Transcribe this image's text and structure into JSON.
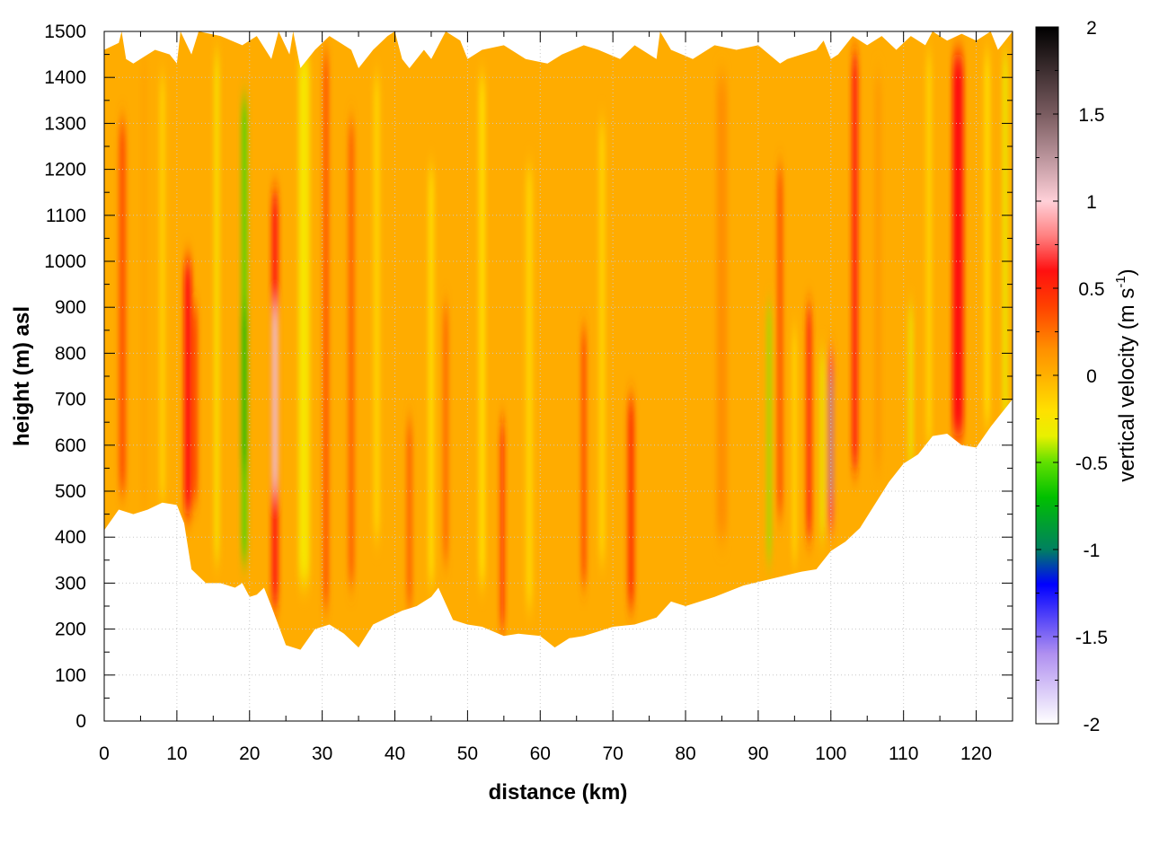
{
  "chart_data": {
    "type": "heatmap",
    "title": "",
    "xlabel": "distance (km)",
    "ylabel": "height (m) asl",
    "xlim": [
      0,
      125
    ],
    "ylim": [
      0,
      1500
    ],
    "x_ticks": [
      0,
      10,
      20,
      30,
      40,
      50,
      60,
      70,
      80,
      90,
      100,
      110,
      120
    ],
    "y_ticks": [
      0,
      100,
      200,
      300,
      400,
      500,
      600,
      700,
      800,
      900,
      1000,
      1100,
      1200,
      1300,
      1400,
      1500
    ],
    "grid": true,
    "colorbar": {
      "label_main": "vertical velocity (m s",
      "label_sup": "-1",
      "label_close": ")",
      "range": [
        -2,
        2
      ],
      "ticks": [
        "2",
        "1.5",
        "1",
        "0.5",
        "0",
        "-0.5",
        "-1",
        "-1.5",
        "-2"
      ],
      "tick_values": [
        2,
        1.5,
        1,
        0.5,
        0,
        -0.5,
        -1,
        -1.5,
        -2
      ],
      "stops": [
        {
          "value": 2,
          "color": "#000000"
        },
        {
          "value": 1.5,
          "color": "#7a5c60"
        },
        {
          "value": 1.2,
          "color": "#c8a0a8"
        },
        {
          "value": 1.0,
          "color": "#ffd0d8"
        },
        {
          "value": 0.8,
          "color": "#ff8080"
        },
        {
          "value": 0.6,
          "color": "#ff1010"
        },
        {
          "value": 0.4,
          "color": "#ff4000"
        },
        {
          "value": 0.15,
          "color": "#ff9000"
        },
        {
          "value": 0.0,
          "color": "#ffb000"
        },
        {
          "value": -0.2,
          "color": "#ffe000"
        },
        {
          "value": -0.35,
          "color": "#e8f000"
        },
        {
          "value": -0.5,
          "color": "#60e000"
        },
        {
          "value": -0.7,
          "color": "#00c000"
        },
        {
          "value": -1.0,
          "color": "#008060"
        },
        {
          "value": -1.2,
          "color": "#0000ff"
        },
        {
          "value": -1.6,
          "color": "#b090f0"
        },
        {
          "value": -2.0,
          "color": "#ffffff"
        }
      ]
    },
    "domain_bottom": [
      [
        0,
        415
      ],
      [
        2,
        460
      ],
      [
        4,
        450
      ],
      [
        6,
        460
      ],
      [
        8,
        475
      ],
      [
        10,
        470
      ],
      [
        11,
        430
      ],
      [
        12,
        330
      ],
      [
        14,
        300
      ],
      [
        16,
        300
      ],
      [
        18,
        290
      ],
      [
        19,
        300
      ],
      [
        20,
        270
      ],
      [
        21,
        275
      ],
      [
        22,
        290
      ],
      [
        23,
        250
      ],
      [
        25,
        165
      ],
      [
        27,
        155
      ],
      [
        29,
        200
      ],
      [
        31,
        210
      ],
      [
        33,
        190
      ],
      [
        35,
        160
      ],
      [
        37,
        210
      ],
      [
        39,
        225
      ],
      [
        41,
        240
      ],
      [
        43,
        250
      ],
      [
        45,
        270
      ],
      [
        46,
        290
      ],
      [
        48,
        220
      ],
      [
        50,
        210
      ],
      [
        52,
        205
      ],
      [
        55,
        185
      ],
      [
        57,
        190
      ],
      [
        60,
        185
      ],
      [
        62,
        160
      ],
      [
        64,
        180
      ],
      [
        66,
        185
      ],
      [
        68,
        195
      ],
      [
        70,
        205
      ],
      [
        73,
        210
      ],
      [
        76,
        225
      ],
      [
        78,
        260
      ],
      [
        80,
        250
      ],
      [
        84,
        270
      ],
      [
        88,
        295
      ],
      [
        92,
        310
      ],
      [
        96,
        325
      ],
      [
        98,
        330
      ],
      [
        100,
        370
      ],
      [
        102,
        390
      ],
      [
        104,
        420
      ],
      [
        106,
        470
      ],
      [
        108,
        520
      ],
      [
        110,
        560
      ],
      [
        112,
        580
      ],
      [
        114,
        620
      ],
      [
        116,
        625
      ],
      [
        118,
        600
      ],
      [
        120,
        595
      ],
      [
        122,
        640
      ],
      [
        124,
        680
      ],
      [
        125,
        700
      ]
    ],
    "domain_top": [
      [
        0,
        1460
      ],
      [
        2,
        1475
      ],
      [
        2.4,
        1500
      ],
      [
        3,
        1440
      ],
      [
        4,
        1430
      ],
      [
        7,
        1460
      ],
      [
        9,
        1450
      ],
      [
        10,
        1430
      ],
      [
        10.5,
        1500
      ],
      [
        12,
        1450
      ],
      [
        13,
        1500
      ],
      [
        16,
        1490
      ],
      [
        19,
        1470
      ],
      [
        21,
        1490
      ],
      [
        23,
        1440
      ],
      [
        24,
        1500
      ],
      [
        25.5,
        1450
      ],
      [
        26,
        1500
      ],
      [
        27,
        1420
      ],
      [
        29,
        1460
      ],
      [
        31,
        1490
      ],
      [
        34,
        1460
      ],
      [
        35,
        1420
      ],
      [
        37,
        1460
      ],
      [
        39,
        1490
      ],
      [
        40,
        1500
      ],
      [
        41,
        1440
      ],
      [
        42,
        1420
      ],
      [
        44,
        1460
      ],
      [
        45,
        1440
      ],
      [
        47,
        1500
      ],
      [
        49,
        1480
      ],
      [
        50,
        1440
      ],
      [
        52,
        1460
      ],
      [
        55,
        1470
      ],
      [
        58,
        1440
      ],
      [
        61,
        1430
      ],
      [
        63,
        1450
      ],
      [
        66,
        1470
      ],
      [
        68,
        1460
      ],
      [
        71,
        1440
      ],
      [
        73,
        1470
      ],
      [
        76,
        1440
      ],
      [
        76.5,
        1500
      ],
      [
        78,
        1460
      ],
      [
        81,
        1440
      ],
      [
        84,
        1470
      ],
      [
        87,
        1460
      ],
      [
        90,
        1470
      ],
      [
        93,
        1430
      ],
      [
        94,
        1440
      ],
      [
        96,
        1450
      ],
      [
        98,
        1460
      ],
      [
        99,
        1480
      ],
      [
        100,
        1440
      ],
      [
        101,
        1450
      ],
      [
        103,
        1490
      ],
      [
        105,
        1470
      ],
      [
        107,
        1490
      ],
      [
        109,
        1460
      ],
      [
        111,
        1490
      ],
      [
        113,
        1470
      ],
      [
        114,
        1500
      ],
      [
        116,
        1480
      ],
      [
        118,
        1495
      ],
      [
        120,
        1480
      ],
      [
        122,
        1500
      ],
      [
        123,
        1460
      ],
      [
        125,
        1500
      ]
    ],
    "features": [
      {
        "x": 2.5,
        "y0": 500,
        "y1": 1300,
        "v": 0.35,
        "w": 0.9
      },
      {
        "x": 5.5,
        "y0": 450,
        "y1": 1450,
        "v": 0.05,
        "w": 0.9
      },
      {
        "x": 8.0,
        "y0": 480,
        "y1": 1400,
        "v": -0.15,
        "w": 0.7
      },
      {
        "x": 11.5,
        "y0": 450,
        "y1": 1000,
        "v": 0.6,
        "w": 1.0
      },
      {
        "x": 12.5,
        "y0": 480,
        "y1": 900,
        "v": 0.45,
        "w": 0.6
      },
      {
        "x": 15.5,
        "y0": 350,
        "y1": 1450,
        "v": -0.25,
        "w": 0.6
      },
      {
        "x": 19.3,
        "y0": 350,
        "y1": 1350,
        "v": -0.55,
        "w": 0.7
      },
      {
        "x": 19.3,
        "y0": 550,
        "y1": 900,
        "v": -0.7,
        "w": 0.6
      },
      {
        "x": 23.5,
        "y0": 250,
        "y1": 1150,
        "v": 0.55,
        "w": 0.9
      },
      {
        "x": 23.5,
        "y0": 500,
        "y1": 900,
        "v": 1.05,
        "w": 0.7
      },
      {
        "x": 27.5,
        "y0": 300,
        "y1": 1450,
        "v": -0.25,
        "w": 1.5
      },
      {
        "x": 30.5,
        "y0": 250,
        "y1": 1450,
        "v": 0.35,
        "w": 0.7
      },
      {
        "x": 34.0,
        "y0": 300,
        "y1": 1300,
        "v": 0.3,
        "w": 0.8
      },
      {
        "x": 37.5,
        "y0": 400,
        "y1": 1400,
        "v": -0.15,
        "w": 0.8
      },
      {
        "x": 42.0,
        "y0": 250,
        "y1": 650,
        "v": 0.3,
        "w": 0.7
      },
      {
        "x": 45.0,
        "y0": 300,
        "y1": 1200,
        "v": -0.2,
        "w": 0.7
      },
      {
        "x": 47.0,
        "y0": 350,
        "y1": 900,
        "v": 0.3,
        "w": 0.6
      },
      {
        "x": 52.0,
        "y0": 300,
        "y1": 1400,
        "v": -0.2,
        "w": 0.8
      },
      {
        "x": 54.8,
        "y0": 200,
        "y1": 650,
        "v": 0.55,
        "w": 0.5
      },
      {
        "x": 58.5,
        "y0": 250,
        "y1": 1200,
        "v": -0.15,
        "w": 0.9
      },
      {
        "x": 66.0,
        "y0": 300,
        "y1": 850,
        "v": 0.4,
        "w": 0.6
      },
      {
        "x": 68.5,
        "y0": 350,
        "y1": 1300,
        "v": -0.15,
        "w": 0.8
      },
      {
        "x": 72.5,
        "y0": 250,
        "y1": 700,
        "v": 0.45,
        "w": 0.9
      },
      {
        "x": 85.0,
        "y0": 400,
        "y1": 1400,
        "v": 0.15,
        "w": 1.5
      },
      {
        "x": 91.5,
        "y0": 350,
        "y1": 900,
        "v": -0.45,
        "w": 0.5
      },
      {
        "x": 93.0,
        "y0": 450,
        "y1": 1200,
        "v": 0.35,
        "w": 0.7
      },
      {
        "x": 95.0,
        "y0": 350,
        "y1": 850,
        "v": -0.2,
        "w": 0.4
      },
      {
        "x": 97.0,
        "y0": 400,
        "y1": 900,
        "v": 0.5,
        "w": 0.7
      },
      {
        "x": 98.8,
        "y0": 400,
        "y1": 800,
        "v": -0.35,
        "w": 0.4
      },
      {
        "x": 100.0,
        "y0": 420,
        "y1": 800,
        "v": 0.7,
        "w": 0.8
      },
      {
        "x": 100.0,
        "y0": 480,
        "y1": 750,
        "v": 1.3,
        "w": 0.5
      },
      {
        "x": 103.3,
        "y0": 550,
        "y1": 1450,
        "v": 0.55,
        "w": 0.8
      },
      {
        "x": 106.5,
        "y0": 550,
        "y1": 1400,
        "v": 0.1,
        "w": 1.0
      },
      {
        "x": 111.0,
        "y0": 550,
        "y1": 900,
        "v": -0.35,
        "w": 0.5
      },
      {
        "x": 113.5,
        "y0": 600,
        "y1": 1450,
        "v": -0.15,
        "w": 0.7
      },
      {
        "x": 117.5,
        "y0": 620,
        "y1": 1450,
        "v": 0.6,
        "w": 1.5
      },
      {
        "x": 121.5,
        "y0": 650,
        "y1": 1450,
        "v": -0.2,
        "w": 0.7
      },
      {
        "x": 124.0,
        "y0": 650,
        "y1": 1450,
        "v": -0.35,
        "w": 0.6
      }
    ]
  }
}
